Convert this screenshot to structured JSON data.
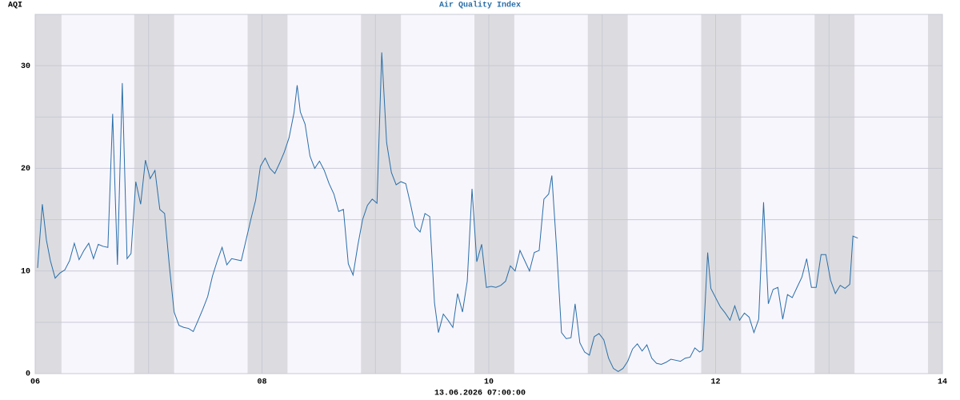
{
  "chart_data": {
    "type": "line",
    "title": "Air Quality Index",
    "ylabel": "AQI",
    "xlabel": "13.06.2026 07:00:00",
    "color": "#2a6fa8",
    "background": "#f8f6fd",
    "shade_color": "#dcdce0",
    "shaded_ranges": [
      [
        6,
        6.232
      ],
      [
        6.873,
        7.225
      ],
      [
        7.873,
        8.225
      ],
      [
        8.873,
        9.225
      ],
      [
        9.873,
        10.225
      ],
      [
        10.873,
        11.225
      ],
      [
        11.873,
        12.225
      ],
      [
        12.873,
        13.225
      ],
      [
        13.873,
        14
      ]
    ],
    "xlim": [
      6,
      14
    ],
    "xticks": [
      {
        "value": 6,
        "label": "06"
      },
      {
        "value": 8,
        "label": "08"
      },
      {
        "value": 10,
        "label": "10"
      },
      {
        "value": 12,
        "label": "12"
      },
      {
        "value": 14,
        "label": "14"
      }
    ],
    "x_minor_gridlines": [
      7,
      9,
      11,
      13
    ],
    "ylim": [
      0,
      35
    ],
    "yticks": [
      0,
      10,
      20,
      30
    ],
    "y_minor_gridlines": [
      5,
      15,
      25
    ],
    "grid": true,
    "x": [
      6.021,
      6.063,
      6.099,
      6.134,
      6.176,
      6.218,
      6.261,
      6.303,
      6.345,
      6.387,
      6.43,
      6.472,
      6.514,
      6.556,
      6.599,
      6.641,
      6.683,
      6.725,
      6.768,
      6.81,
      6.845,
      6.887,
      6.93,
      6.972,
      7.014,
      7.056,
      7.099,
      7.141,
      7.183,
      7.225,
      7.268,
      7.31,
      7.352,
      7.394,
      7.437,
      7.479,
      7.521,
      7.563,
      7.606,
      7.648,
      7.69,
      7.732,
      7.775,
      7.817,
      7.859,
      7.901,
      7.944,
      7.986,
      8.028,
      8.07,
      8.113,
      8.155,
      8.197,
      8.239,
      8.282,
      8.31,
      8.338,
      8.38,
      8.423,
      8.465,
      8.507,
      8.549,
      8.592,
      8.634,
      8.676,
      8.718,
      8.761,
      8.803,
      8.845,
      8.887,
      8.93,
      8.972,
      9.014,
      9.056,
      9.099,
      9.141,
      9.183,
      9.225,
      9.268,
      9.31,
      9.352,
      9.394,
      9.437,
      9.479,
      9.521,
      9.556,
      9.599,
      9.641,
      9.683,
      9.725,
      9.768,
      9.81,
      9.852,
      9.894,
      9.937,
      9.979,
      10.021,
      10.063,
      10.106,
      10.148,
      10.19,
      10.232,
      10.275,
      10.317,
      10.359,
      10.401,
      10.444,
      10.486,
      10.528,
      10.556,
      10.599,
      10.641,
      10.683,
      10.725,
      10.761,
      10.803,
      10.845,
      10.887,
      10.93,
      10.972,
      11.014,
      11.056,
      11.099,
      11.141,
      11.183,
      11.225,
      11.268,
      11.31,
      11.352,
      11.394,
      11.437,
      11.479,
      11.521,
      11.563,
      11.606,
      11.648,
      11.69,
      11.732,
      11.775,
      11.817,
      11.859,
      11.887,
      11.93,
      11.958,
      12.0,
      12.042,
      12.085,
      12.127,
      12.169,
      12.211,
      12.254,
      12.296,
      12.338,
      12.38,
      12.423,
      12.465,
      12.507,
      12.549,
      12.592,
      12.634,
      12.676,
      12.718,
      12.761,
      12.803,
      12.845,
      12.887,
      12.93,
      12.972,
      13.014,
      13.056,
      13.099,
      13.141,
      13.183,
      13.211,
      13.254
    ],
    "values": [
      10.3,
      16.5,
      13,
      11,
      9.3,
      9.8,
      10.1,
      11,
      12.7,
      11.1,
      12,
      12.7,
      11.2,
      12.6,
      12.4,
      12.3,
      25.3,
      10.6,
      28.3,
      11.2,
      11.7,
      18.7,
      16.5,
      20.8,
      19,
      19.8,
      16,
      15.6,
      10.5,
      6,
      4.7,
      4.5,
      4.4,
      4.1,
      5.2,
      6.3,
      7.5,
      9.5,
      11,
      12.3,
      10.6,
      11.2,
      11.1,
      11,
      13,
      15,
      16.9,
      20.2,
      21,
      20,
      19.5,
      20.5,
      21.6,
      23,
      25.4,
      28.1,
      25.5,
      24.3,
      21.2,
      20,
      20.7,
      19.8,
      18.5,
      17.5,
      15.8,
      16,
      10.7,
      9.6,
      12.5,
      15,
      16.4,
      17,
      16.6,
      31.3,
      22.5,
      19.6,
      18.4,
      18.7,
      18.5,
      16.5,
      14.3,
      13.8,
      15.6,
      15.3,
      6.9,
      4,
      5.8,
      5.2,
      4.5,
      7.8,
      6,
      9,
      18,
      10.9,
      12.6,
      8.4,
      8.5,
      8.4,
      8.6,
      9,
      10.5,
      10,
      12,
      11,
      10,
      11.8,
      12,
      17,
      17.5,
      19.3,
      12,
      4,
      3.4,
      3.5,
      6.8,
      3,
      2.1,
      1.8,
      3.6,
      3.9,
      3.3,
      1.5,
      0.5,
      0.2,
      0.5,
      1.2,
      2.4,
      2.9,
      2.2,
      2.8,
      1.5,
      1,
      0.9,
      1.1,
      1.4,
      1.3,
      1.2,
      1.5,
      1.6,
      2.5,
      2.1,
      2.3,
      11.8,
      8.3,
      7.4,
      6.5,
      5.9,
      5.2,
      6.6,
      5.2,
      5.9,
      5.5,
      4,
      5.3,
      16.7,
      6.8,
      8.2,
      8.4,
      5.3,
      7.7,
      7.4,
      8.4,
      9.4,
      11.2,
      8.4,
      8.4,
      11.6,
      11.6,
      9.1,
      7.8,
      8.6,
      8.3,
      8.7,
      13.4,
      13.2
    ]
  }
}
